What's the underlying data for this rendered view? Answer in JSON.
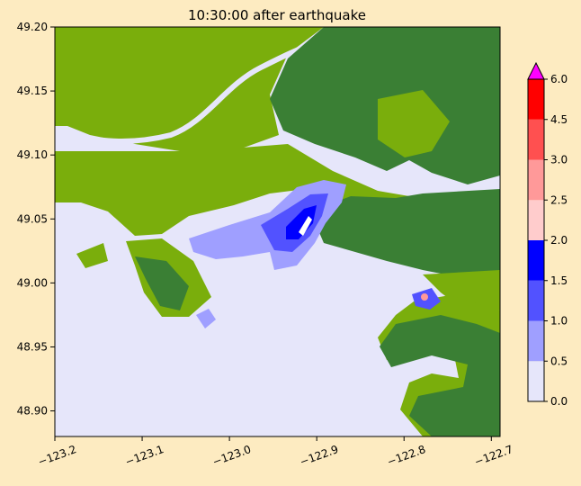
{
  "page": {
    "background": "#fdebc1"
  },
  "chart_data": {
    "type": "heatmap",
    "title": "10:30:00 after earthquake",
    "xlim": [
      -123.2,
      -122.69
    ],
    "ylim": [
      48.88,
      49.2
    ],
    "x_ticks": [
      -123.2,
      -123.1,
      -123.0,
      -122.9,
      -122.8,
      -122.7
    ],
    "x_tick_labels": [
      "−123.2",
      "−123.1",
      "−123.0",
      "−122.9",
      "−122.8",
      "−122.7"
    ],
    "y_ticks": [
      48.9,
      48.95,
      49.0,
      49.05,
      49.1,
      49.15,
      49.2
    ],
    "y_tick_labels": [
      "48.90",
      "48.95",
      "49.00",
      "49.05",
      "49.10",
      "49.15",
      "49.20"
    ],
    "colorbar": {
      "levels": [
        0.0,
        0.5,
        1.0,
        1.5,
        2.0,
        2.5,
        3.0,
        4.5,
        6.0
      ],
      "tick_labels": [
        "0.0",
        "0.5",
        "1.0",
        "1.5",
        "2.0",
        "2.5",
        "3.0",
        "4.5",
        "6.0"
      ],
      "colors": [
        "#e6e6fa",
        "#9f9fff",
        "#5252ff",
        "#0000ff",
        "#ffcccc",
        "#ff9999",
        "#ff5050",
        "#ff0000"
      ],
      "extend_max_color": "#ff00ff"
    },
    "colors": {
      "water": "#e6e6fa",
      "land_low": "#7aae0c",
      "land_high": "#3a7f34",
      "inundation_light": "#9f9fff",
      "inundation_mid": "#5252ff",
      "inundation_deep": "#0000ff"
    }
  }
}
